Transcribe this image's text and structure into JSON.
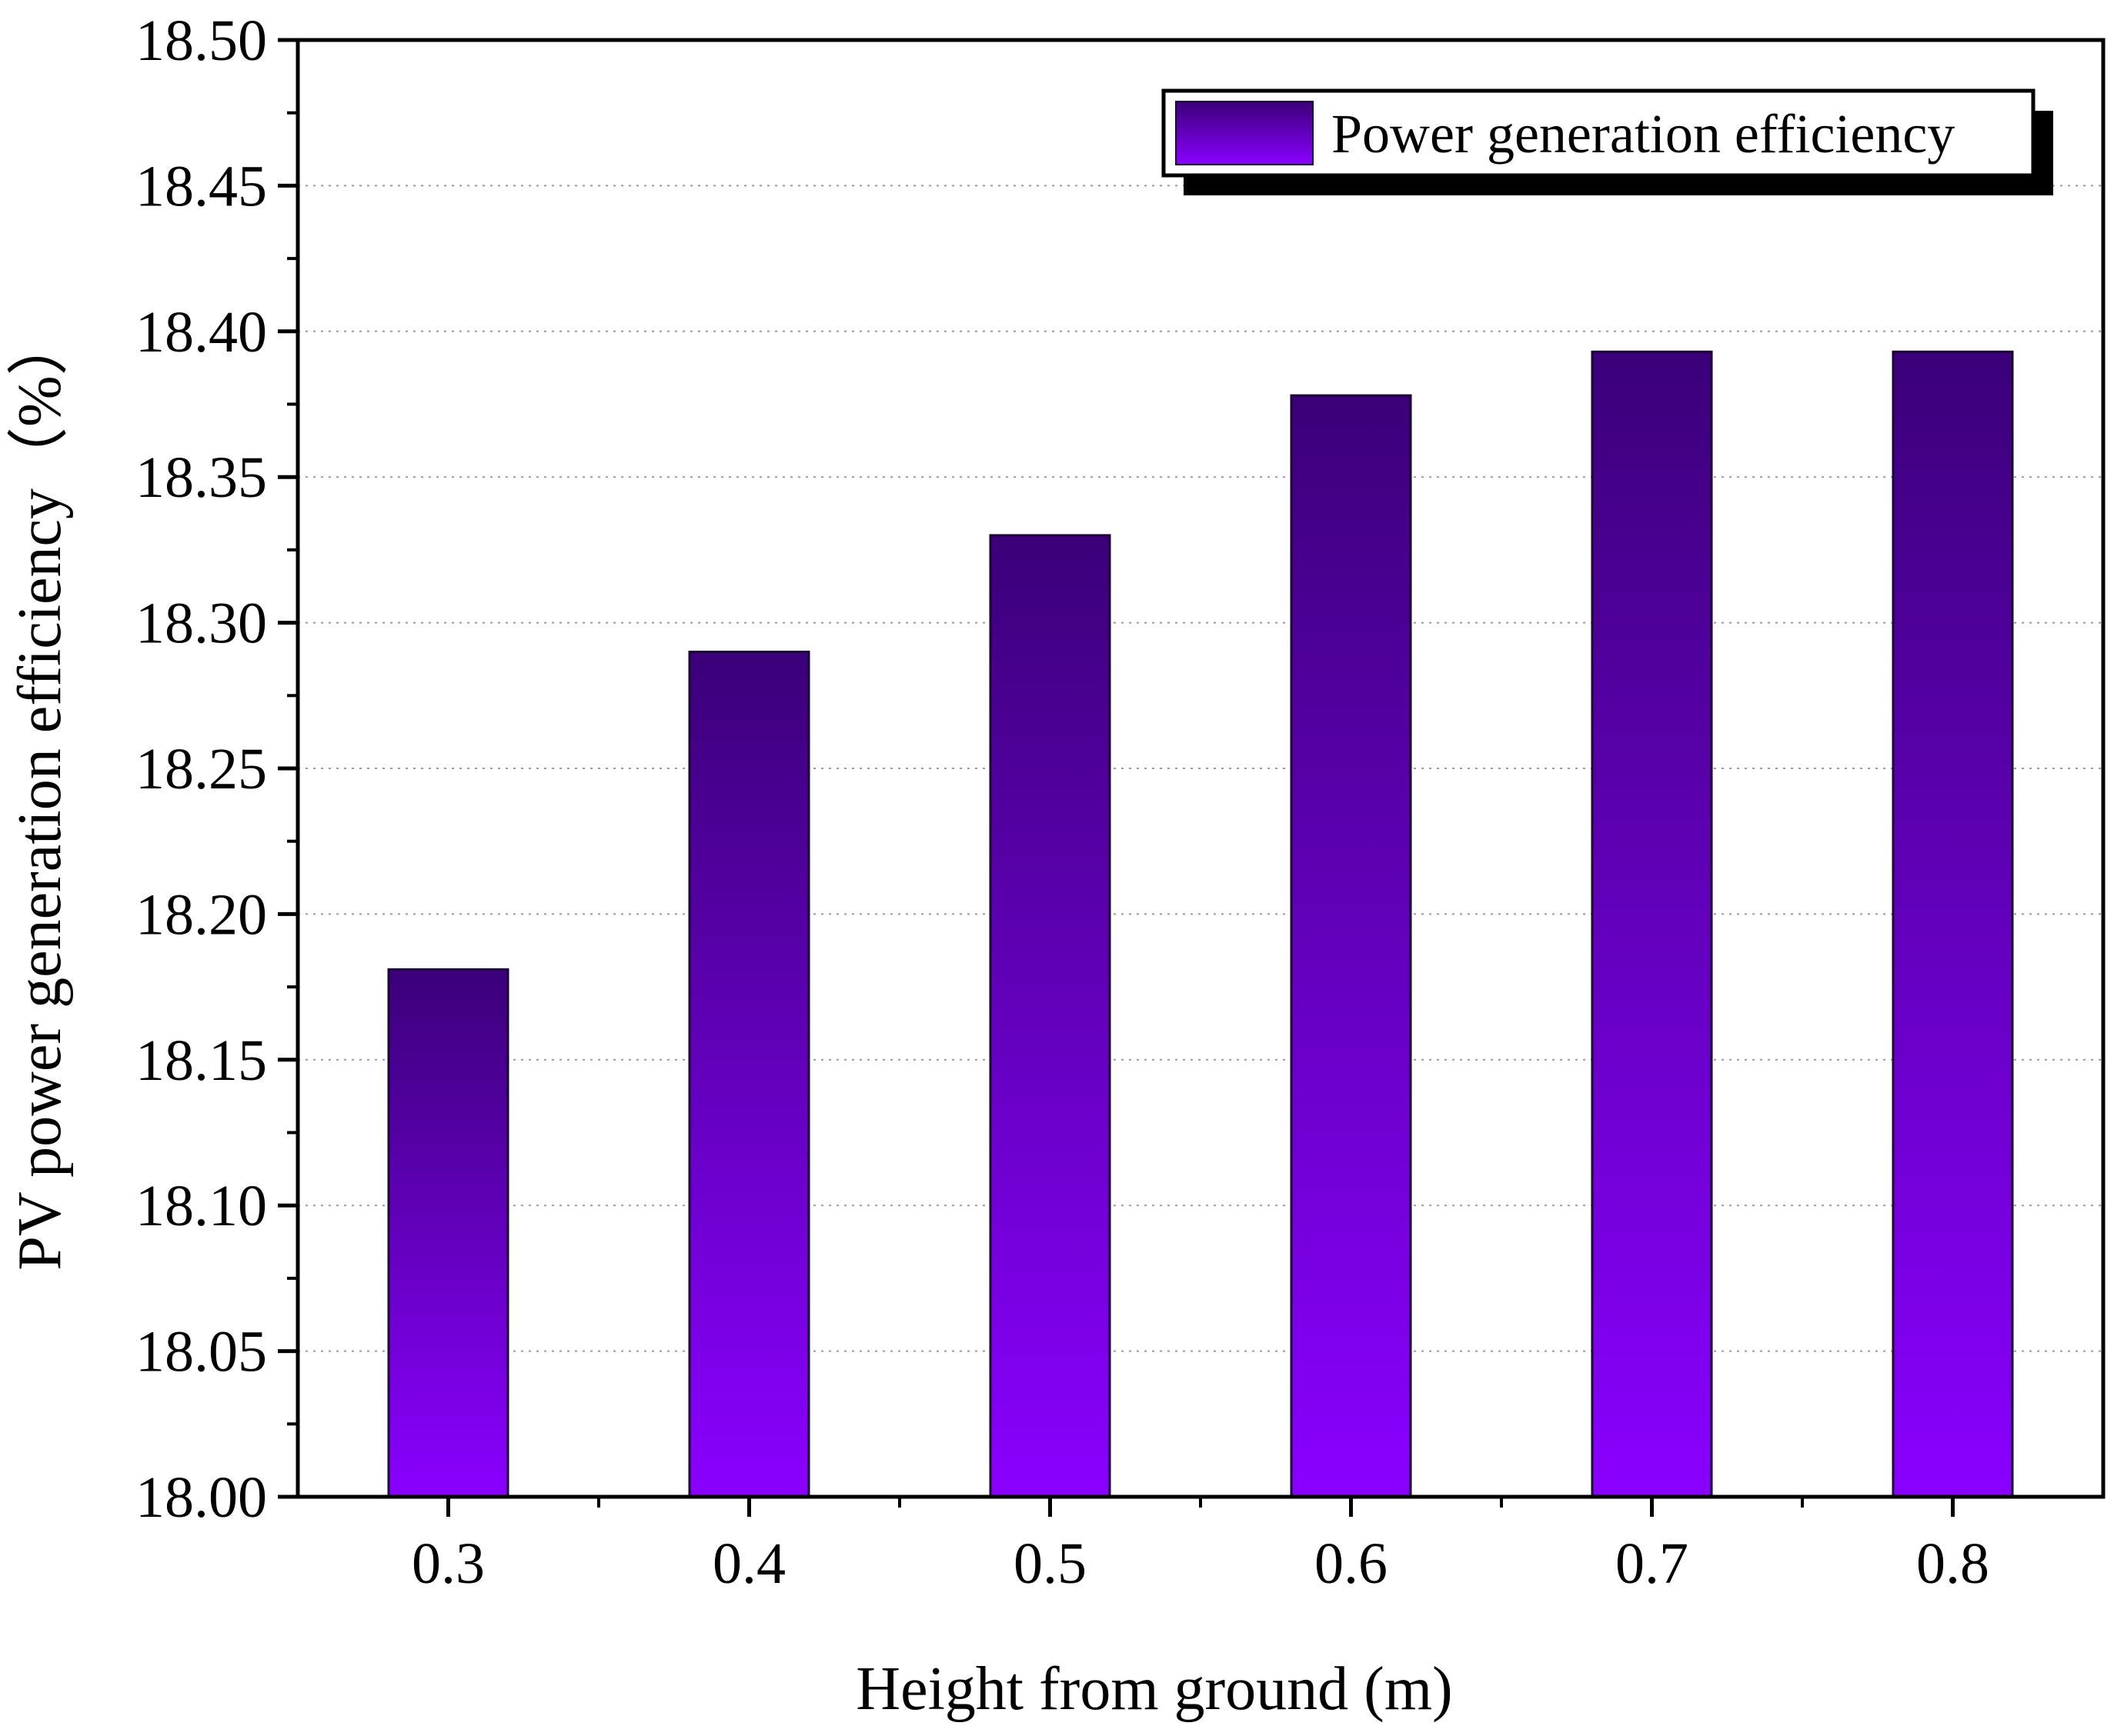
{
  "chart_data": {
    "type": "bar",
    "title": "",
    "xlabel": "Height from ground (m)",
    "ylabel": "PV power generation efficiency（%）",
    "categories": [
      "0.3",
      "0.4",
      "0.5",
      "0.6",
      "0.7",
      "0.8"
    ],
    "series": [
      {
        "name": "Power generation efficiency",
        "values": [
          18.181,
          18.29,
          18.33,
          18.378,
          18.393,
          18.393
        ]
      }
    ],
    "ylim": [
      18.0,
      18.5
    ],
    "yticks": [
      "18.00",
      "18.05",
      "18.10",
      "18.15",
      "18.20",
      "18.25",
      "18.30",
      "18.35",
      "18.40",
      "18.45",
      "18.50"
    ],
    "grid": true,
    "legend_position": "top-right",
    "colors": {
      "bar_top": "#3b0079",
      "bar_bottom": "#8a00ff",
      "grid": "#9a9a9a",
      "axis": "#000000"
    }
  }
}
